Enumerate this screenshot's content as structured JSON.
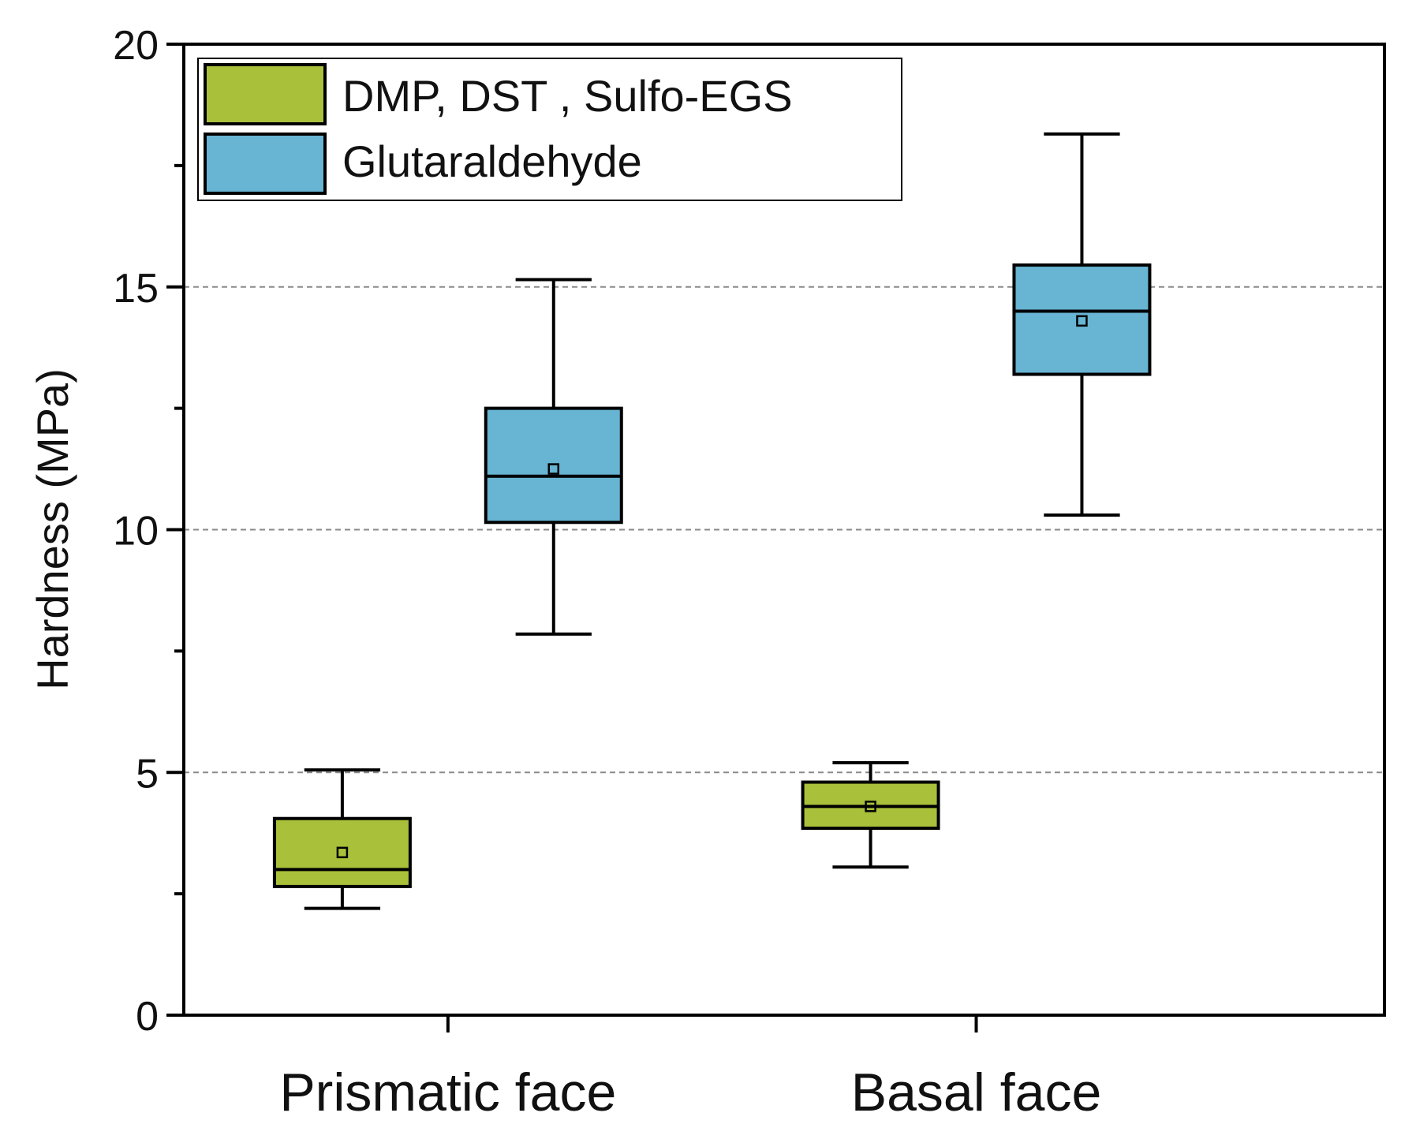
{
  "chart_data": {
    "type": "box",
    "title": "",
    "xlabel": "",
    "ylabel": "Hardness (MPa)",
    "ylim": [
      0,
      20
    ],
    "y_major_ticks": [
      0,
      5,
      10,
      15,
      20
    ],
    "y_major_tick_labels": [
      "0",
      "5",
      "10",
      "15",
      "20"
    ],
    "y_minor_ticks": [
      2.5,
      7.5,
      12.5,
      17.5
    ],
    "gridlines_at": [
      5,
      10,
      15
    ],
    "grid": "dashed horizontal at major ticks",
    "categories": [
      "Prismatic face",
      "Basal face"
    ],
    "legend_position": "top-left",
    "series": [
      {
        "name": "DMP, DST , Sulfo-EGS",
        "color": "#a9c03a",
        "boxes": [
          {
            "category": "Prismatic face",
            "whisker_low": 2.2,
            "q1": 2.65,
            "median": 3.0,
            "q3": 4.05,
            "whisker_high": 5.05,
            "mean": 3.35
          },
          {
            "category": "Basal face",
            "whisker_low": 3.05,
            "q1": 3.85,
            "median": 4.3,
            "q3": 4.8,
            "whisker_high": 5.2,
            "mean": 4.3
          }
        ]
      },
      {
        "name": "Glutaraldehyde",
        "color": "#67b4d3",
        "boxes": [
          {
            "category": "Prismatic face",
            "whisker_low": 7.85,
            "q1": 10.15,
            "median": 11.1,
            "q3": 12.5,
            "whisker_high": 15.15,
            "mean": 11.25
          },
          {
            "category": "Basal face",
            "whisker_low": 10.3,
            "q1": 13.2,
            "median": 14.5,
            "q3": 15.45,
            "whisker_high": 18.15,
            "mean": 14.3
          }
        ]
      }
    ]
  }
}
